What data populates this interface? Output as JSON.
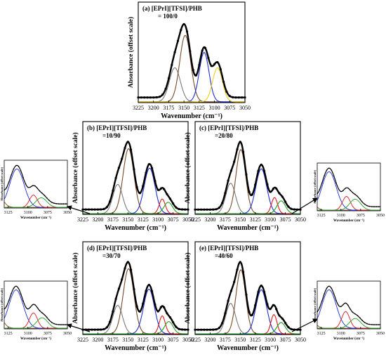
{
  "chart_data": [
    {
      "id": "a",
      "type": "line",
      "title": "(a) [EPrI][TFSI]/PHB",
      "subtitle": "= 100/0",
      "xlabel": "Wavenumber (cm⁻¹)",
      "ylabel": "Absorbance (offset scale)",
      "xlim": [
        3225,
        3050
      ],
      "xticks": [
        3225,
        3200,
        3175,
        3150,
        3125,
        3100,
        3075,
        3050
      ],
      "baseline": 0.06,
      "peaks": [
        {
          "center": 3165,
          "amplitude": 0.4,
          "width": 9,
          "color": "#7a7a7a"
        },
        {
          "center": 3148,
          "amplitude": 0.78,
          "width": 9,
          "color": "#7a4a28"
        },
        {
          "center": 3117,
          "amplitude": 0.58,
          "width": 8,
          "color": "#1f2fd6"
        },
        {
          "center": 3095,
          "amplitude": 0.4,
          "width": 8,
          "color": "#f0d020"
        }
      ]
    },
    {
      "id": "b",
      "type": "line",
      "title": "(b) [EPrI][TFSI]/PHB",
      "subtitle": "=10/90",
      "xlabel": "Wavenumber (cm⁻¹)",
      "ylabel": "Absorbance (offset scale)",
      "xlim": [
        3225,
        3050
      ],
      "xticks": [
        3225,
        3200,
        3175,
        3150,
        3125,
        3100,
        3075,
        3050
      ],
      "baseline": 0.06,
      "peaks": [
        {
          "center": 3167,
          "amplitude": 0.36,
          "width": 8,
          "color": "#7a7a7a"
        },
        {
          "center": 3149,
          "amplitude": 0.8,
          "width": 9,
          "color": "#7a4a28"
        },
        {
          "center": 3114,
          "amplitude": 0.56,
          "width": 9,
          "color": "#1f2fd6"
        },
        {
          "center": 3093,
          "amplitude": 0.18,
          "width": 5,
          "color": "#e01818"
        },
        {
          "center": 3083,
          "amplitude": 0.14,
          "width": 7,
          "color": "#22a022"
        }
      ],
      "inset": {
        "xlim": [
          3130,
          3050
        ],
        "xticks": [
          3125,
          3100,
          3075,
          3050
        ],
        "xlabel": "Wavenumber (cm⁻¹)",
        "ylabel": "Absorbance (offset scale)"
      }
    },
    {
      "id": "c",
      "type": "line",
      "title": "(c) [EPrI][TFSI]/PHB",
      "subtitle": "=20/80",
      "xlabel": "Wavenumber (cm⁻¹)",
      "ylabel": "Absorbance (offset scale)",
      "xlim": [
        3225,
        3050
      ],
      "xticks": [
        3225,
        3200,
        3175,
        3150,
        3125,
        3100,
        3075,
        3050
      ],
      "baseline": 0.06,
      "peaks": [
        {
          "center": 3166,
          "amplitude": 0.38,
          "width": 8,
          "color": "#7a7a7a"
        },
        {
          "center": 3149,
          "amplitude": 0.8,
          "width": 8,
          "color": "#7a4a28"
        },
        {
          "center": 3115,
          "amplitude": 0.56,
          "width": 9,
          "color": "#1f2fd6"
        },
        {
          "center": 3093,
          "amplitude": 0.2,
          "width": 5,
          "color": "#e01818"
        },
        {
          "center": 3082,
          "amplitude": 0.16,
          "width": 7,
          "color": "#22a022"
        }
      ],
      "inset": {
        "xlim": [
          3130,
          3050
        ],
        "xticks": [
          3125,
          3100,
          3075,
          3050
        ],
        "xlabel": "Wavenumber (cm⁻¹)",
        "ylabel": "Absorbance (offset scale)"
      }
    },
    {
      "id": "d",
      "type": "line",
      "title": "(d) [EPrI][TFSI]/PHB",
      "subtitle": "=30/70",
      "xlabel": "Wavenumber (cm⁻¹)",
      "ylabel": "Absorbance (offset scale)",
      "xlim": [
        3225,
        3050
      ],
      "xticks": [
        3225,
        3200,
        3175,
        3150,
        3125,
        3100,
        3075,
        3050
      ],
      "baseline": 0.06,
      "peaks": [
        {
          "center": 3167,
          "amplitude": 0.35,
          "width": 8,
          "color": "#7a7a7a"
        },
        {
          "center": 3149,
          "amplitude": 0.8,
          "width": 9,
          "color": "#7a4a28"
        },
        {
          "center": 3115,
          "amplitude": 0.55,
          "width": 9,
          "color": "#1f2fd6"
        },
        {
          "center": 3093,
          "amplitude": 0.22,
          "width": 5,
          "color": "#e01818"
        },
        {
          "center": 3082,
          "amplitude": 0.15,
          "width": 7,
          "color": "#22a022"
        }
      ],
      "inset": {
        "xlim": [
          3130,
          3050
        ],
        "xticks": [
          3125,
          3100,
          3075,
          3050
        ],
        "xlabel": "Wavenumber (cm⁻¹)",
        "ylabel": "Absorbance (offset scale)"
      }
    },
    {
      "id": "e",
      "type": "line",
      "title": "(e) [EPrI][TFSI]/PHB",
      "subtitle": "=40/60",
      "xlabel": "Wavenumber (cm⁻¹)",
      "ylabel": "Absorbance (offset scale)",
      "xlim": [
        3225,
        3050
      ],
      "xticks": [
        3225,
        3200,
        3175,
        3150,
        3125,
        3100,
        3075,
        3050
      ],
      "baseline": 0.06,
      "peaks": [
        {
          "center": 3166,
          "amplitude": 0.38,
          "width": 8,
          "color": "#7a7a7a"
        },
        {
          "center": 3149,
          "amplitude": 0.8,
          "width": 8,
          "color": "#7a4a28"
        },
        {
          "center": 3115,
          "amplitude": 0.55,
          "width": 9,
          "color": "#1f2fd6"
        },
        {
          "center": 3094,
          "amplitude": 0.24,
          "width": 5,
          "color": "#e01818"
        },
        {
          "center": 3082,
          "amplitude": 0.14,
          "width": 7,
          "color": "#22a022"
        }
      ],
      "inset": {
        "xlim": [
          3130,
          3050
        ],
        "xticks": [
          3125,
          3100,
          3075,
          3050
        ],
        "xlabel": "Wavenumber (cm⁻¹)",
        "ylabel": "Absorbance (offset scale)"
      }
    }
  ]
}
